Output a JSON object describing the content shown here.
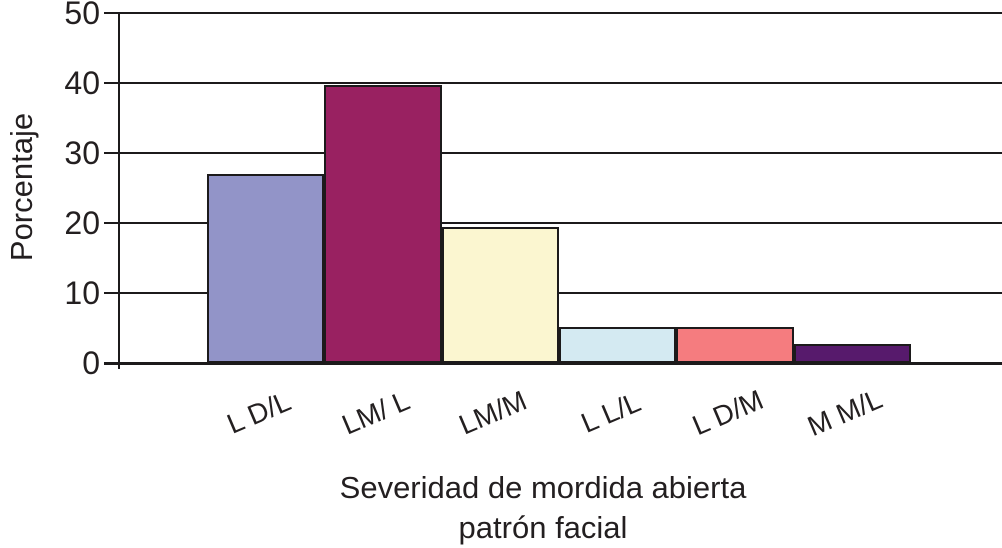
{
  "chart_data": {
    "type": "bar",
    "categories": [
      "L D/L",
      "LM/ L",
      "LM/M",
      "L L/L",
      "L D/M",
      "M M/L"
    ],
    "values": [
      27,
      39.7,
      19.4,
      5.1,
      5.1,
      2.7
    ],
    "bar_colors": [
      "#9294C8",
      "#992161",
      "#FBF6D0",
      "#D4EAF2",
      "#F57C7F",
      "#571A6C"
    ],
    "ylabel": "Porcentaje",
    "xlabel_line1": "Severidad de mordida abierta",
    "xlabel_line2": "patrón facial",
    "yticks": [
      0,
      10,
      20,
      30,
      40,
      50
    ],
    "ylim": [
      0,
      50
    ],
    "grid": "horizontal",
    "legend": "none",
    "axis_color": "#1c1a1b",
    "background_color": "#ffffff"
  }
}
